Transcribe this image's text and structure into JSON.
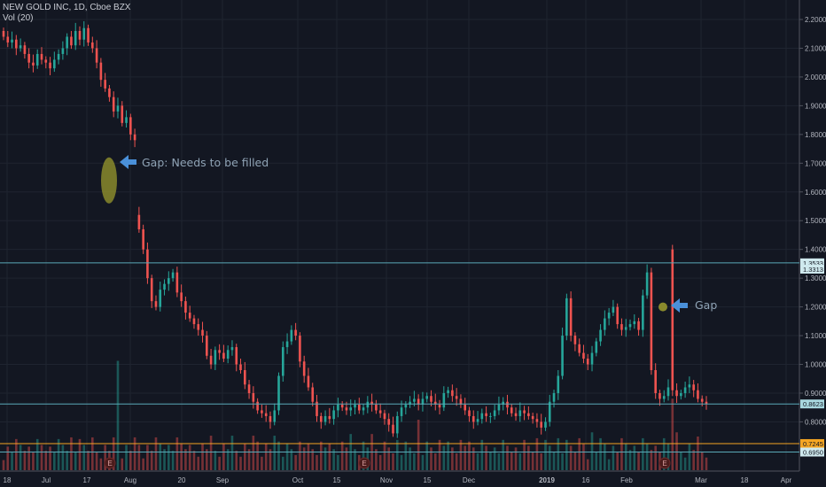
{
  "header": {
    "symbol_line": "NEW GOLD INC, 1D, Cboe BZX",
    "volume_line": "Vol (20)"
  },
  "colors": {
    "up": "#26a69a",
    "down": "#ef5350",
    "background": "#131722",
    "level_line": "#5aa9b7",
    "orange_line": "#f5a623",
    "annotation_arrow": "#4a90d9",
    "gap_ellipse": "#8a8a2c"
  },
  "annotations": {
    "gap_big": "Gap: Needs to be filled",
    "gap_small": "Gap",
    "earnings_marker": "E"
  },
  "chart_data": {
    "type": "candlestick",
    "title": "NEW GOLD INC, 1D, Cboe BZX",
    "y_axis_ticks": [
      "2.2000",
      "2.1000",
      "2.0000",
      "1.9000",
      "1.8000",
      "1.7000",
      "1.6000",
      "1.5000",
      "1.4000",
      "1.3000",
      "1.2000",
      "1.1000",
      "1.0000",
      "0.9000",
      "0.8000"
    ],
    "y_range": [
      0.66,
      2.24
    ],
    "x_axis_ticks": [
      "18",
      "Jul",
      "17",
      "Aug",
      "20",
      "Sep",
      "Oct",
      "15",
      "Nov",
      "15",
      "Dec",
      "2019",
      "16",
      "Feb",
      "Mar",
      "18",
      "Apr"
    ],
    "price_labels": [
      {
        "text": "1.3533",
        "value": 1.3533,
        "kind": "level"
      },
      {
        "text": "1.3313",
        "value": 1.3313,
        "kind": "level"
      },
      {
        "text": "0.8623",
        "value": 0.8623,
        "kind": "last"
      },
      {
        "text": "0.7245",
        "value": 0.7245,
        "kind": "orange"
      },
      {
        "text": "0.6950",
        "value": 0.695,
        "kind": "level"
      }
    ],
    "gap_zone": {
      "high": 1.72,
      "low": 1.56
    },
    "small_gap_level": 1.2,
    "volume_indicator": "Vol (20)",
    "earnings_markers": 3
  }
}
